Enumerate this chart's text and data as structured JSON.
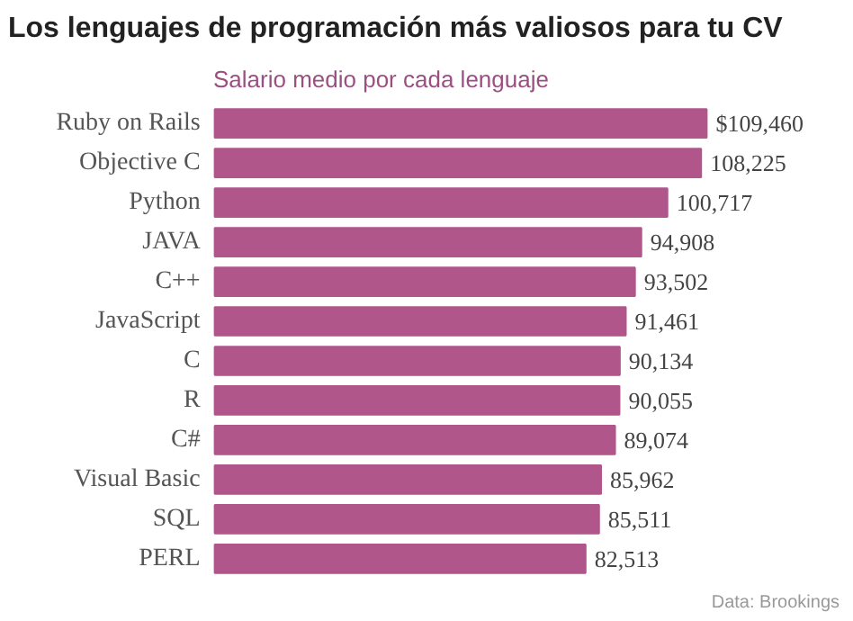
{
  "chart_data": {
    "type": "bar",
    "orientation": "horizontal",
    "title": "Los lenguajes de programación más valiosos para tu CV",
    "subtitle": "Salario medio por cada lenguaje",
    "categories": [
      "Ruby on Rails",
      "Objective C",
      "Python",
      "JAVA",
      "C++",
      "JavaScript",
      "C",
      "R",
      "C#",
      "Visual Basic",
      "SQL",
      "PERL"
    ],
    "values": [
      109460,
      108225,
      100717,
      94908,
      93502,
      91461,
      90134,
      90055,
      89074,
      85962,
      85511,
      82513
    ],
    "value_labels": [
      "$109,460",
      "108,225",
      "100,717",
      "94,908",
      "93,502",
      "91,461",
      "90,134",
      "90,055",
      "89,074",
      "85,962",
      "85,511",
      "82,513"
    ],
    "color": "#b0568a",
    "grid": false,
    "annotations": [
      "Data: Brookings"
    ]
  }
}
